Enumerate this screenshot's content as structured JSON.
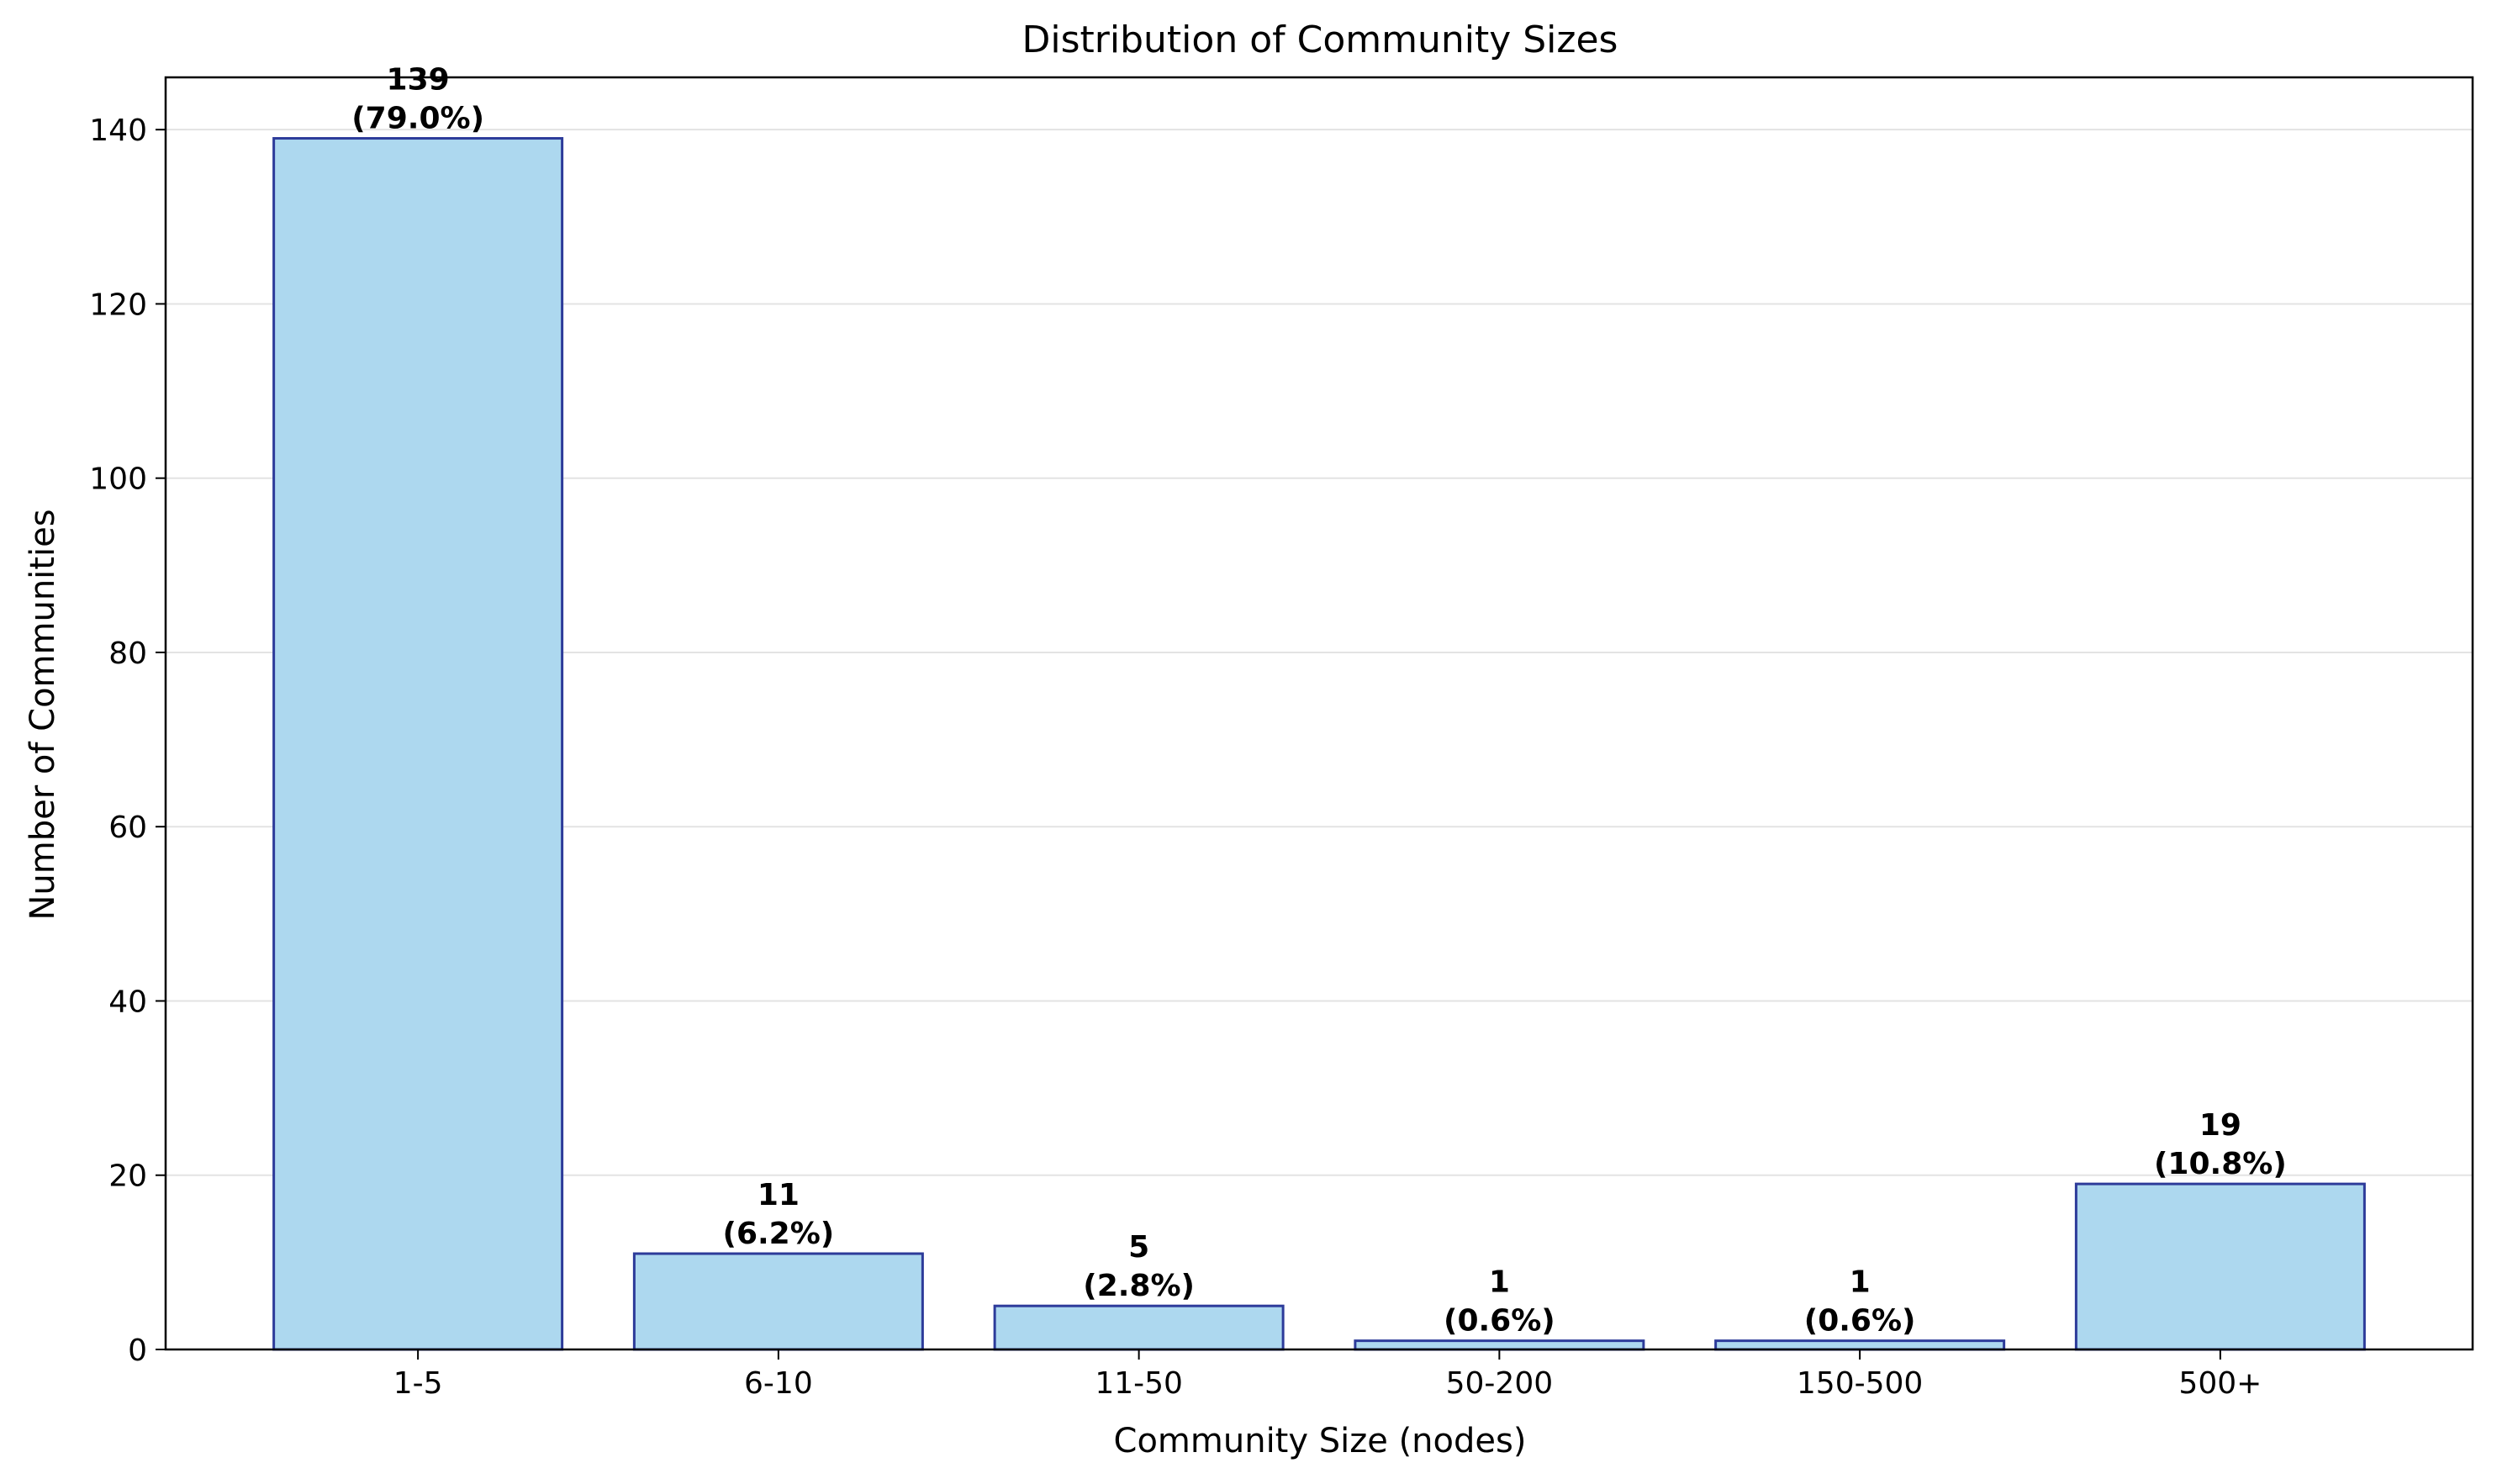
{
  "chart_data": {
    "type": "bar",
    "title": "Distribution of Community Sizes",
    "xlabel": "Community Size (nodes)",
    "ylabel": "Number of Communities",
    "categories": [
      "1-5",
      "6-10",
      "11-50",
      "50-200",
      "150-500",
      "500+"
    ],
    "values": [
      139,
      11,
      5,
      1,
      1,
      19
    ],
    "value_labels": [
      "139",
      "11",
      "5",
      "1",
      "1",
      "19"
    ],
    "percent_labels": [
      "(79.0%)",
      "(6.2%)",
      "(2.8%)",
      "(0.6%)",
      "(0.6%)",
      "(10.8%)"
    ],
    "y_ticks": [
      0,
      20,
      40,
      60,
      80,
      100,
      120,
      140
    ],
    "ylim": [
      0,
      146
    ],
    "grid": "y",
    "colors": {
      "bar_fill": "#add8ef",
      "bar_edge": "#2d3b9a",
      "grid": "#e3e3e3",
      "axis": "#000000"
    }
  }
}
